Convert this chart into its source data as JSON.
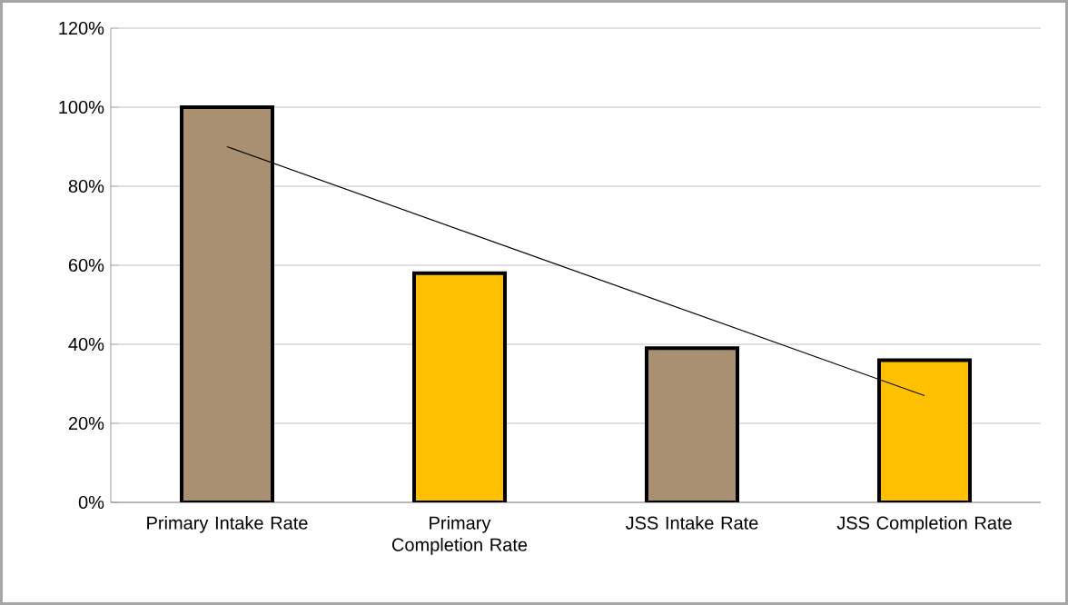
{
  "chart_data": {
    "type": "bar",
    "categories": [
      "Primary Intake Rate",
      "Primary Completion Rate",
      "JSS Intake Rate",
      "JSS Completion Rate"
    ],
    "series": [
      {
        "values": [
          100,
          58,
          39,
          36
        ],
        "colors": [
          "#a89070",
          "#ffc000",
          "#a89070",
          "#ffc000"
        ]
      },
      {
        "type": "line",
        "x": [
          "Primary Intake Rate",
          "JSS Completion Rate"
        ],
        "values": [
          90,
          27
        ],
        "color": "#000000"
      }
    ],
    "ylim": [
      0,
      120
    ],
    "yticks": [
      {
        "value": 0,
        "label": "0%"
      },
      {
        "value": 20,
        "label": "20%"
      },
      {
        "value": 40,
        "label": "40%"
      },
      {
        "value": 60,
        "label": "60%"
      },
      {
        "value": 80,
        "label": "80%"
      },
      {
        "value": 100,
        "label": "100%"
      },
      {
        "value": 120,
        "label": "120%"
      }
    ],
    "grid": "y"
  }
}
